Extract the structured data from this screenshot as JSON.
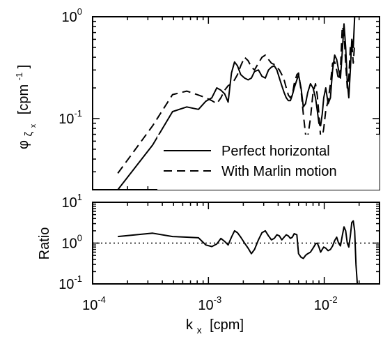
{
  "chart_data": [
    {
      "type": "line",
      "scale": "log-log",
      "ylabel": {
        "base": "φ",
        "sub1": "ζ",
        "sub2": "x",
        "unit_open": "[cpm",
        "unit_exp": "-1",
        "unit_close": "]"
      },
      "xlim": [
        0.0001,
        0.03
      ],
      "ylim": [
        0.02,
        1
      ],
      "yticks": [
        {
          "value": 1,
          "mant": "10",
          "exp": "0"
        },
        {
          "value": 0.1,
          "mant": "10",
          "exp": "-1"
        }
      ],
      "legend": {
        "position": "bottom-right",
        "entries": [
          "Perfect horizontal",
          "With Marlin motion"
        ]
      },
      "series": [
        {
          "name": "Perfect horizontal",
          "style": "solid",
          "x": [
            0.000165,
            0.00033,
            0.00049,
            0.00065,
            0.00082,
            0.00095,
            0.00107,
            0.00118,
            0.00128,
            0.00138,
            0.00148,
            0.00158,
            0.00168,
            0.00178,
            0.0019,
            0.00205,
            0.0022,
            0.00235,
            0.0025,
            0.0027,
            0.0029,
            0.0031,
            0.0033,
            0.0035,
            0.0037,
            0.0039,
            0.0041,
            0.0043,
            0.0045,
            0.0047,
            0.0049,
            0.0051,
            0.0053,
            0.0055,
            0.0058,
            0.006,
            0.0063,
            0.0066,
            0.0069,
            0.0072,
            0.0076,
            0.008,
            0.0084,
            0.0087,
            0.009,
            0.0093,
            0.0096,
            0.0099,
            0.0103,
            0.0108,
            0.0113,
            0.0118,
            0.0123,
            0.0128,
            0.0133,
            0.0138,
            0.0143,
            0.0148,
            0.0153,
            0.0158,
            0.0163,
            0.0168,
            0.0173,
            0.0178,
            0.0183
          ],
          "y": [
            0.02,
            0.055,
            0.117,
            0.13,
            0.123,
            0.148,
            0.16,
            0.2,
            0.19,
            0.175,
            0.145,
            0.28,
            0.36,
            0.33,
            0.27,
            0.25,
            0.24,
            0.25,
            0.29,
            0.3,
            0.26,
            0.25,
            0.3,
            0.32,
            0.33,
            0.3,
            0.25,
            0.21,
            0.18,
            0.16,
            0.15,
            0.15,
            0.17,
            0.2,
            0.24,
            0.27,
            0.2,
            0.13,
            0.14,
            0.18,
            0.22,
            0.2,
            0.16,
            0.12,
            0.09,
            0.085,
            0.11,
            0.16,
            0.2,
            0.14,
            0.16,
            0.3,
            0.42,
            0.38,
            0.3,
            0.25,
            0.45,
            0.85,
            0.5,
            0.23,
            0.16,
            0.3,
            0.6,
            0.5,
            1.0
          ]
        },
        {
          "name": "With Marlin motion",
          "style": "dashed",
          "x": [
            0.000165,
            0.00033,
            0.00049,
            0.00065,
            0.00082,
            0.00095,
            0.00107,
            0.00118,
            0.00128,
            0.00138,
            0.00148,
            0.00158,
            0.00168,
            0.00178,
            0.0019,
            0.00205,
            0.0022,
            0.00235,
            0.0025,
            0.0027,
            0.0029,
            0.0031,
            0.0033,
            0.0035,
            0.0037,
            0.0039,
            0.0041,
            0.0043,
            0.0045,
            0.0047,
            0.0049,
            0.0051,
            0.0053,
            0.0055,
            0.0058,
            0.006,
            0.0063,
            0.0066,
            0.0069,
            0.0072,
            0.0076,
            0.008,
            0.0084,
            0.0087,
            0.009,
            0.0093,
            0.0096,
            0.0099,
            0.0103,
            0.0108,
            0.0113,
            0.0118,
            0.0123,
            0.0128,
            0.0133,
            0.0138,
            0.0143,
            0.0148,
            0.0153,
            0.0158,
            0.0163,
            0.0168,
            0.0173,
            0.0178,
            0.0183
          ],
          "y": [
            0.029,
            0.085,
            0.172,
            0.186,
            0.17,
            0.16,
            0.15,
            0.14,
            0.16,
            0.19,
            0.21,
            0.22,
            0.24,
            0.27,
            0.33,
            0.4,
            0.37,
            0.32,
            0.3,
            0.35,
            0.4,
            0.42,
            0.38,
            0.35,
            0.34,
            0.32,
            0.3,
            0.27,
            0.24,
            0.2,
            0.17,
            0.16,
            0.17,
            0.22,
            0.27,
            0.28,
            0.19,
            0.11,
            0.07,
            0.066,
            0.1,
            0.18,
            0.22,
            0.17,
            0.11,
            0.066,
            0.065,
            0.08,
            0.12,
            0.15,
            0.22,
            0.35,
            0.36,
            0.3,
            0.24,
            0.3,
            0.8,
            0.7,
            0.35,
            0.2,
            0.25,
            0.5,
            0.55,
            0.35,
            0.55
          ]
        }
      ]
    },
    {
      "type": "line",
      "scale": "log-log",
      "xlabel": {
        "base": "k",
        "sub": "x",
        "unit": "[cpm]"
      },
      "ylabel": "Ratio",
      "xlim": [
        0.0001,
        0.03
      ],
      "ylim": [
        0.1,
        10
      ],
      "xticks": [
        {
          "value": 0.0001,
          "mant": "10",
          "exp": "-4"
        },
        {
          "value": 0.001,
          "mant": "10",
          "exp": "-3"
        },
        {
          "value": 0.01,
          "mant": "10",
          "exp": "-2"
        }
      ],
      "yticks": [
        {
          "value": 10,
          "mant": "10",
          "exp": "1"
        },
        {
          "value": 1,
          "mant": "10",
          "exp": "0"
        },
        {
          "value": 0.1,
          "mant": "10",
          "exp": "-1"
        }
      ],
      "reference_line": {
        "y": 1,
        "style": "dotted"
      },
      "series": [
        {
          "style": "solid",
          "x": [
            0.000165,
            0.00033,
            0.00049,
            0.00065,
            0.00082,
            0.00095,
            0.00107,
            0.00118,
            0.00128,
            0.00138,
            0.00148,
            0.00158,
            0.00168,
            0.00178,
            0.0019,
            0.00205,
            0.0022,
            0.00235,
            0.0025,
            0.0027,
            0.0029,
            0.0031,
            0.0033,
            0.0035,
            0.0037,
            0.0039,
            0.0041,
            0.0043,
            0.0045,
            0.0047,
            0.0049,
            0.0051,
            0.0053,
            0.0055,
            0.0058,
            0.006,
            0.0063,
            0.0066,
            0.0069,
            0.0072,
            0.0076,
            0.008,
            0.0084,
            0.0087,
            0.009,
            0.0093,
            0.0096,
            0.0099,
            0.0103,
            0.0108,
            0.0113,
            0.0118,
            0.0123,
            0.0128,
            0.0133,
            0.0138,
            0.0143,
            0.0148,
            0.0153,
            0.0158,
            0.0163,
            0.0168,
            0.0173,
            0.0178,
            0.0183,
            0.0188,
            0.0193
          ],
          "y": [
            1.45,
            1.75,
            1.45,
            1.4,
            1.35,
            0.9,
            0.82,
            0.95,
            1.3,
            1.1,
            0.9,
            1.4,
            2.0,
            1.8,
            1.4,
            1.0,
            0.75,
            0.55,
            0.7,
            1.2,
            1.8,
            2.0,
            1.5,
            1.2,
            1.3,
            1.6,
            1.5,
            1.2,
            1.4,
            1.6,
            1.5,
            1.3,
            1.4,
            1.7,
            1.6,
            0.55,
            0.45,
            0.42,
            0.5,
            0.55,
            0.6,
            0.75,
            0.95,
            1.0,
            0.8,
            0.6,
            0.7,
            0.8,
            0.75,
            0.65,
            0.7,
            0.85,
            1.15,
            1.4,
            1.0,
            0.85,
            1.5,
            2.5,
            2.0,
            1.0,
            0.8,
            1.5,
            3.2,
            3.5,
            2.0,
            0.3,
            0.1
          ]
        }
      ]
    }
  ]
}
